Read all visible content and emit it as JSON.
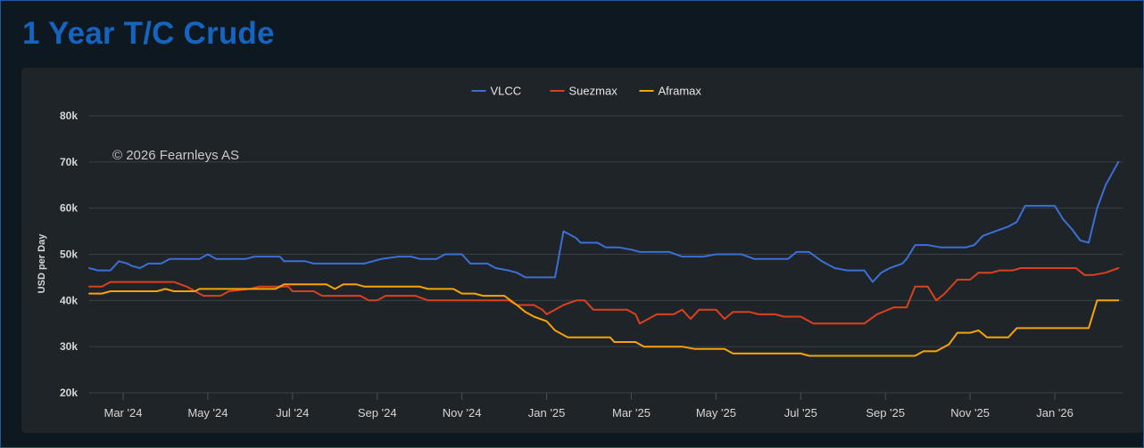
{
  "page": {
    "title": "1 Year T/C Crude"
  },
  "chart_data": {
    "type": "line",
    "title": "1 Year T/C Crude",
    "ylabel": "USD per Day",
    "xlabel": "",
    "ylim": [
      20000,
      80000
    ],
    "yticks": [
      20000,
      30000,
      40000,
      50000,
      60000,
      70000,
      80000
    ],
    "ytick_labels": [
      "20k",
      "30k",
      "40k",
      "50k",
      "60k",
      "70k",
      "80k"
    ],
    "xlim": [
      0.2,
      24.6
    ],
    "x_ticks": [
      {
        "x": 1,
        "label": "Mar '24"
      },
      {
        "x": 3,
        "label": "May '24"
      },
      {
        "x": 5,
        "label": "Jul '24"
      },
      {
        "x": 7,
        "label": "Sep '24"
      },
      {
        "x": 9,
        "label": "Nov '24"
      },
      {
        "x": 11,
        "label": "Jan '25"
      },
      {
        "x": 13,
        "label": "Mar '25"
      },
      {
        "x": 15,
        "label": "May '25"
      },
      {
        "x": 17,
        "label": "Jul '25"
      },
      {
        "x": 19,
        "label": "Sep '25"
      },
      {
        "x": 21,
        "label": "Nov '25"
      },
      {
        "x": 23,
        "label": "Jan '26"
      }
    ],
    "legend_position": "top-center",
    "annotation": "© 2026 Fearnleys AS",
    "grid": true,
    "series": [
      {
        "name": "VLCC",
        "color": "#3b6fd6",
        "points": [
          [
            0.2,
            47000
          ],
          [
            0.4,
            46500
          ],
          [
            0.7,
            46500
          ],
          [
            0.9,
            48500
          ],
          [
            1.1,
            48000
          ],
          [
            1.2,
            47500
          ],
          [
            1.4,
            47000
          ],
          [
            1.6,
            48000
          ],
          [
            1.9,
            48000
          ],
          [
            2.1,
            49000
          ],
          [
            2.5,
            49000
          ],
          [
            2.8,
            49000
          ],
          [
            3.0,
            50000
          ],
          [
            3.2,
            49000
          ],
          [
            3.5,
            49000
          ],
          [
            3.9,
            49000
          ],
          [
            4.1,
            49500
          ],
          [
            4.5,
            49500
          ],
          [
            4.7,
            49500
          ],
          [
            4.8,
            48500
          ],
          [
            5.3,
            48500
          ],
          [
            5.5,
            48000
          ],
          [
            6.2,
            48000
          ],
          [
            6.7,
            48000
          ],
          [
            7.1,
            49000
          ],
          [
            7.5,
            49500
          ],
          [
            7.8,
            49500
          ],
          [
            8.0,
            49000
          ],
          [
            8.4,
            49000
          ],
          [
            8.6,
            50000
          ],
          [
            9.0,
            50000
          ],
          [
            9.2,
            48000
          ],
          [
            9.6,
            48000
          ],
          [
            9.8,
            47000
          ],
          [
            10.1,
            46500
          ],
          [
            10.3,
            46000
          ],
          [
            10.5,
            45000
          ],
          [
            11.2,
            45000
          ],
          [
            11.4,
            55000
          ],
          [
            11.7,
            53500
          ],
          [
            11.8,
            52500
          ],
          [
            12.2,
            52500
          ],
          [
            12.4,
            51500
          ],
          [
            12.7,
            51500
          ],
          [
            13.0,
            51000
          ],
          [
            13.2,
            50500
          ],
          [
            13.9,
            50500
          ],
          [
            14.2,
            49500
          ],
          [
            14.7,
            49500
          ],
          [
            15.0,
            50000
          ],
          [
            15.6,
            50000
          ],
          [
            15.9,
            49000
          ],
          [
            16.7,
            49000
          ],
          [
            16.9,
            50500
          ],
          [
            17.2,
            50500
          ],
          [
            17.5,
            48500
          ],
          [
            17.8,
            47000
          ],
          [
            18.1,
            46500
          ],
          [
            18.5,
            46500
          ],
          [
            18.7,
            44000
          ],
          [
            18.9,
            46000
          ],
          [
            19.1,
            47000
          ],
          [
            19.4,
            48000
          ],
          [
            19.5,
            49000
          ],
          [
            19.7,
            52000
          ],
          [
            20.0,
            52000
          ],
          [
            20.3,
            51500
          ],
          [
            20.9,
            51500
          ],
          [
            21.1,
            52000
          ],
          [
            21.3,
            54000
          ],
          [
            21.6,
            55000
          ],
          [
            21.9,
            56000
          ],
          [
            22.1,
            57000
          ],
          [
            22.3,
            60500
          ],
          [
            23.0,
            60500
          ],
          [
            23.2,
            57500
          ],
          [
            23.4,
            55500
          ],
          [
            23.6,
            53000
          ],
          [
            23.8,
            52500
          ],
          [
            24.0,
            60000
          ],
          [
            24.2,
            65000
          ],
          [
            24.5,
            70000
          ]
        ]
      },
      {
        "name": "Suezmax",
        "color": "#d9411e",
        "points": [
          [
            0.2,
            43000
          ],
          [
            0.5,
            43000
          ],
          [
            0.7,
            44000
          ],
          [
            1.0,
            44000
          ],
          [
            2.2,
            44000
          ],
          [
            2.5,
            43000
          ],
          [
            2.7,
            42000
          ],
          [
            2.9,
            41000
          ],
          [
            3.3,
            41000
          ],
          [
            3.5,
            42000
          ],
          [
            4.0,
            42500
          ],
          [
            4.2,
            43000
          ],
          [
            4.9,
            43000
          ],
          [
            5.0,
            42000
          ],
          [
            5.5,
            42000
          ],
          [
            5.7,
            41000
          ],
          [
            6.6,
            41000
          ],
          [
            6.8,
            40000
          ],
          [
            7.0,
            40000
          ],
          [
            7.2,
            41000
          ],
          [
            7.9,
            41000
          ],
          [
            8.2,
            40000
          ],
          [
            9.0,
            40000
          ],
          [
            9.4,
            40000
          ],
          [
            10.1,
            40000
          ],
          [
            10.3,
            39000
          ],
          [
            10.7,
            39000
          ],
          [
            10.9,
            38000
          ],
          [
            11.0,
            37000
          ],
          [
            11.2,
            38000
          ],
          [
            11.4,
            39000
          ],
          [
            11.7,
            40000
          ],
          [
            11.9,
            40000
          ],
          [
            12.1,
            38000
          ],
          [
            12.6,
            38000
          ],
          [
            12.9,
            38000
          ],
          [
            13.1,
            37000
          ],
          [
            13.2,
            35000
          ],
          [
            13.4,
            36000
          ],
          [
            13.6,
            37000
          ],
          [
            14.0,
            37000
          ],
          [
            14.2,
            38000
          ],
          [
            14.4,
            36000
          ],
          [
            14.5,
            37000
          ],
          [
            14.6,
            38000
          ],
          [
            15.0,
            38000
          ],
          [
            15.2,
            36000
          ],
          [
            15.4,
            37500
          ],
          [
            15.8,
            37500
          ],
          [
            16.0,
            37000
          ],
          [
            16.4,
            37000
          ],
          [
            16.6,
            36500
          ],
          [
            17.0,
            36500
          ],
          [
            17.3,
            35000
          ],
          [
            18.3,
            35000
          ],
          [
            18.5,
            35000
          ],
          [
            18.8,
            37000
          ],
          [
            19.2,
            38500
          ],
          [
            19.5,
            38500
          ],
          [
            19.7,
            43000
          ],
          [
            20.0,
            43000
          ],
          [
            20.2,
            40000
          ],
          [
            20.4,
            41500
          ],
          [
            20.7,
            44500
          ],
          [
            21.0,
            44500
          ],
          [
            21.2,
            46000
          ],
          [
            21.5,
            46000
          ],
          [
            21.7,
            46500
          ],
          [
            22.0,
            46500
          ],
          [
            22.2,
            47000
          ],
          [
            23.5,
            47000
          ],
          [
            23.7,
            45500
          ],
          [
            23.9,
            45500
          ],
          [
            24.2,
            46000
          ],
          [
            24.5,
            47000
          ]
        ]
      },
      {
        "name": "Aframax",
        "color": "#f5a30a",
        "points": [
          [
            0.2,
            41500
          ],
          [
            0.5,
            41500
          ],
          [
            0.7,
            42000
          ],
          [
            1.8,
            42000
          ],
          [
            2.0,
            42500
          ],
          [
            2.2,
            42000
          ],
          [
            2.4,
            42000
          ],
          [
            2.7,
            42000
          ],
          [
            2.8,
            42500
          ],
          [
            4.6,
            42500
          ],
          [
            4.8,
            43500
          ],
          [
            5.0,
            43500
          ],
          [
            5.5,
            43500
          ],
          [
            5.8,
            43500
          ],
          [
            6.0,
            42500
          ],
          [
            6.2,
            43500
          ],
          [
            6.5,
            43500
          ],
          [
            6.7,
            43000
          ],
          [
            7.5,
            43000
          ],
          [
            8.0,
            43000
          ],
          [
            8.2,
            42500
          ],
          [
            8.8,
            42500
          ],
          [
            9.0,
            41500
          ],
          [
            9.3,
            41500
          ],
          [
            9.5,
            41000
          ],
          [
            10.0,
            41000
          ],
          [
            10.3,
            39000
          ],
          [
            10.5,
            37500
          ],
          [
            10.7,
            36500
          ],
          [
            11.0,
            35500
          ],
          [
            11.2,
            33500
          ],
          [
            11.5,
            32000
          ],
          [
            12.2,
            32000
          ],
          [
            12.5,
            32000
          ],
          [
            12.6,
            31000
          ],
          [
            13.1,
            31000
          ],
          [
            13.3,
            30000
          ],
          [
            14.2,
            30000
          ],
          [
            14.5,
            29500
          ],
          [
            15.2,
            29500
          ],
          [
            15.4,
            28500
          ],
          [
            16.5,
            28500
          ],
          [
            17.0,
            28500
          ],
          [
            17.2,
            28000
          ],
          [
            18.5,
            28000
          ],
          [
            19.0,
            28000
          ],
          [
            19.5,
            28000
          ],
          [
            19.7,
            28000
          ],
          [
            19.9,
            29000
          ],
          [
            20.2,
            29000
          ],
          [
            20.5,
            30500
          ],
          [
            20.7,
            33000
          ],
          [
            21.0,
            33000
          ],
          [
            21.2,
            33500
          ],
          [
            21.4,
            32000
          ],
          [
            21.9,
            32000
          ],
          [
            22.1,
            34000
          ],
          [
            23.2,
            34000
          ],
          [
            23.5,
            34000
          ],
          [
            23.8,
            34000
          ],
          [
            24.0,
            40000
          ],
          [
            24.5,
            40000
          ]
        ]
      }
    ]
  }
}
